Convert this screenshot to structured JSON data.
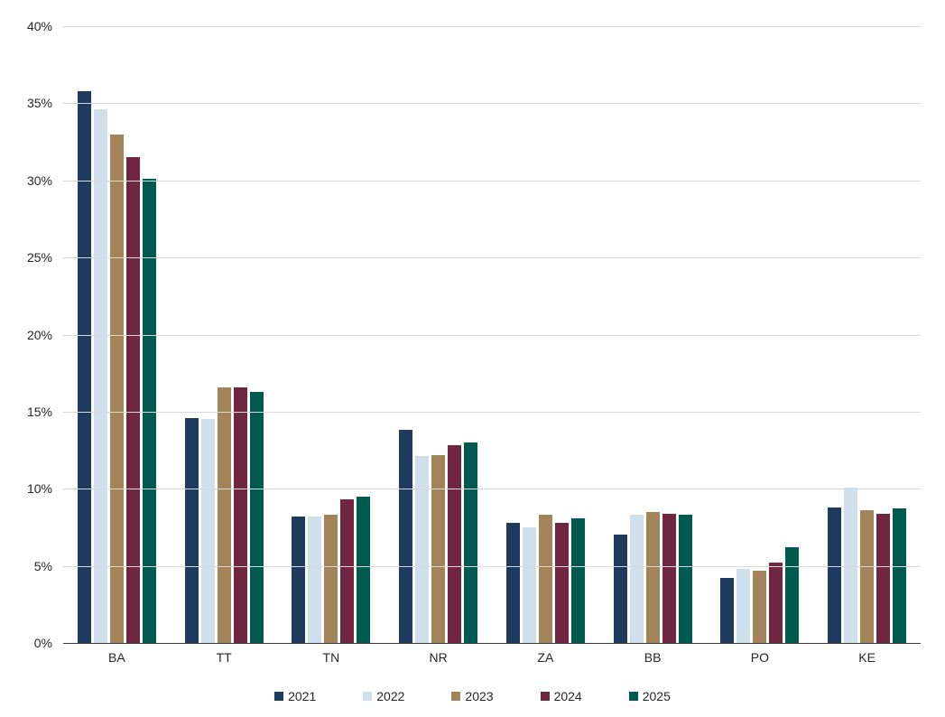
{
  "chart_data": {
    "type": "bar",
    "title": "",
    "xlabel": "",
    "ylabel": "",
    "categories": [
      "BA",
      "TT",
      "TN",
      "NR",
      "ZA",
      "BB",
      "PO",
      "KE"
    ],
    "series": [
      {
        "name": "2021",
        "color": "#1f3a5f",
        "values": [
          35.8,
          14.6,
          8.2,
          13.8,
          7.8,
          7.0,
          4.2,
          8.8
        ]
      },
      {
        "name": "2022",
        "color": "#cfe0ec",
        "values": [
          34.6,
          14.5,
          8.2,
          12.1,
          7.5,
          8.3,
          4.8,
          10.1
        ]
      },
      {
        "name": "2023",
        "color": "#a38458",
        "values": [
          33.0,
          16.6,
          8.3,
          12.2,
          8.3,
          8.5,
          4.7,
          8.6
        ]
      },
      {
        "name": "2024",
        "color": "#702540",
        "values": [
          31.5,
          16.6,
          9.3,
          12.8,
          7.8,
          8.4,
          5.2,
          8.4
        ]
      },
      {
        "name": "2025",
        "color": "#005a50",
        "values": [
          30.1,
          16.3,
          9.5,
          13.0,
          8.1,
          8.3,
          6.2,
          8.7
        ]
      }
    ],
    "ylim": [
      0,
      40
    ],
    "ytick_step": 5,
    "yticklabels": [
      "40%",
      "35%",
      "30%",
      "25%",
      "20%",
      "15%",
      "10%",
      "5%",
      "0%"
    ],
    "ytick_values": [
      40,
      35,
      30,
      25,
      20,
      15,
      10,
      5,
      0
    ],
    "grid": "horizontal",
    "gridline_color": "#d9d9d9",
    "axis_line_color": "#3c3c3c",
    "legend_position": "bottom",
    "background_color": "#ffffff"
  }
}
